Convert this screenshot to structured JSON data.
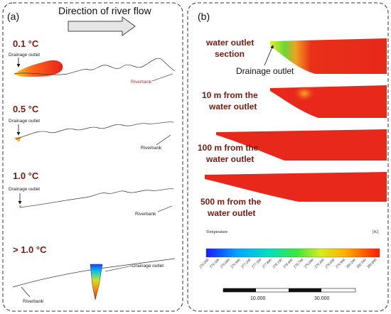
{
  "panel_a": {
    "label": "(a)",
    "flow_label": "Direction of river flow",
    "rows": [
      {
        "temp": "0.1 °C",
        "drain": "Drainage outlet",
        "bank": "Riverbank"
      },
      {
        "temp": "0.5 °C",
        "drain": "Drainage outlet",
        "bank": "Riverbank"
      },
      {
        "temp": "1.0 °C",
        "drain": "Drainage outlet",
        "bank": "Riverbank"
      },
      {
        "temp": "> 1.0 °C",
        "drain": "Drainage outlet",
        "bank": "Riverbank"
      }
    ]
  },
  "panel_b": {
    "label": "(b)",
    "sections": [
      {
        "line1": "water outlet",
        "line2": "section"
      },
      {
        "line1": "10 m from the",
        "line2": "water outlet"
      },
      {
        "line1": "100 m from the",
        "line2": "water outlet"
      },
      {
        "line1": "500 m from the",
        "line2": "water outlet"
      }
    ],
    "drain_label": "Drainage outlet",
    "colorbar": {
      "title": "Temperature",
      "unit": "[K]",
      "ticks": [
        "276.000",
        "276.300",
        "276.600",
        "276.900",
        "277.200",
        "277.500",
        "277.800",
        "278.100",
        "278.400",
        "278.700",
        "279.000",
        "279.300",
        "279.600",
        "279.900",
        "280.200",
        "280.500",
        "280.800"
      ]
    },
    "scale": {
      "labels": [
        "10.000",
        "30.000"
      ]
    }
  }
}
